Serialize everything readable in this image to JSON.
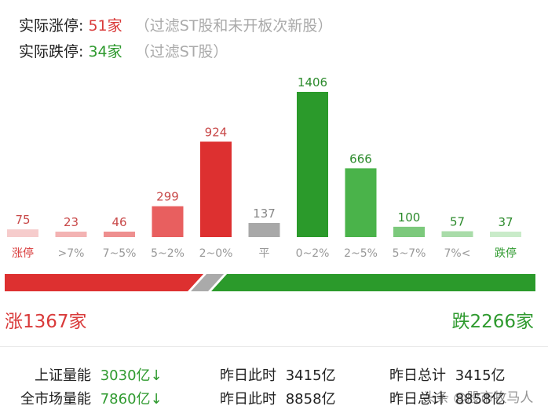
{
  "header": {
    "limit_up_label": "实际涨停:",
    "limit_up_value": "51家",
    "limit_up_note": "（过滤ST股和未开板次新股）",
    "limit_down_label": "实际跌停:",
    "limit_down_value": "34家",
    "limit_down_note": "（过滤ST股）"
  },
  "chart_data": {
    "type": "bar",
    "categories": [
      "涨停",
      ">7%",
      "7~5%",
      "5~2%",
      "2~0%",
      "平",
      "0~2%",
      "2~5%",
      "5~7%",
      "7%<",
      "跌停"
    ],
    "values": [
      75,
      23,
      46,
      299,
      924,
      137,
      1406,
      666,
      100,
      57,
      37
    ],
    "colors": [
      "#f6cccc",
      "#f3b3b3",
      "#ee8f8f",
      "#e85f5f",
      "#dd3030",
      "#a8a8a8",
      "#2b9a2b",
      "#4ab34a",
      "#7cc97c",
      "#a9dca9",
      "#c9ebc9"
    ],
    "value_colors": [
      "#c84848",
      "#c84848",
      "#c84848",
      "#c84848",
      "#c84848",
      "#888888",
      "#2b8a2b",
      "#2b8a2b",
      "#2b8a2b",
      "#2b8a2b",
      "#2b8a2b"
    ],
    "label_colors": [
      "#d93a3a",
      "#999999",
      "#999999",
      "#999999",
      "#999999",
      "#999999",
      "#999999",
      "#999999",
      "#999999",
      "#999999",
      "#2f9a2f"
    ],
    "ylim": [
      0,
      1406
    ]
  },
  "ratio_bar": {
    "up_value": 1367,
    "down_value": 2266,
    "up_color": "#dd3030",
    "down_color": "#2b9a2b",
    "flat_color": "#aaaaaa"
  },
  "summary": {
    "up_text": "涨1367家",
    "down_text": "跌2266家"
  },
  "volume": {
    "rows": [
      {
        "label": "上证量能",
        "value": "3030亿↓",
        "y_label": "昨日此时",
        "y_value": "3415亿",
        "t_label": "昨日总计",
        "t_value": "3415亿"
      },
      {
        "label": "全市场量能",
        "value": "7860亿↓",
        "y_label": "昨日此时",
        "y_value": "8858亿",
        "t_label": "昨日总计",
        "t_value": "8858亿"
      }
    ]
  },
  "watermark": "头条 @股市牧马人"
}
